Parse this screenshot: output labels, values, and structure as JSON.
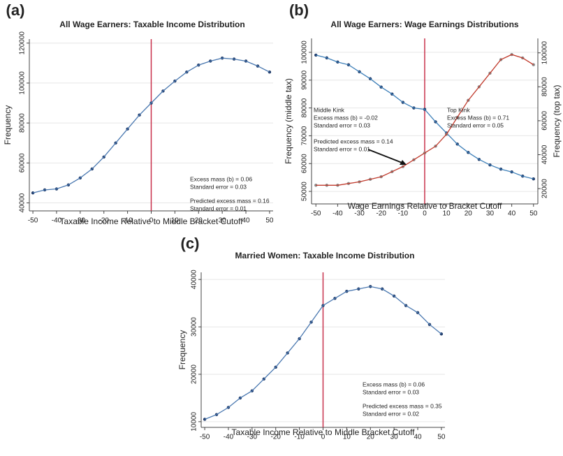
{
  "chart_data": [
    {
      "type": "scatter",
      "panel_label": "(a)",
      "title": "All Wage Earners: Taxable Income Distribution",
      "x_label": "Taxable Income Relative to Middle Bracket Cutoff",
      "y_label": "Frequency",
      "x": [
        -50,
        -45,
        -40,
        -35,
        -30,
        -25,
        -20,
        -15,
        -10,
        -5,
        0,
        5,
        10,
        15,
        20,
        25,
        30,
        35,
        40,
        45,
        50
      ],
      "series": [
        {
          "color": "#1f3a68",
          "line_color": "#4a78b0",
          "values": [
            45000,
            46500,
            47000,
            49000,
            52500,
            57000,
            63000,
            70000,
            77000,
            84000,
            90000,
            96000,
            101000,
            105500,
            109000,
            111000,
            112500,
            112000,
            111000,
            108500,
            105500
          ]
        }
      ],
      "xlim": [
        -51.5,
        51.5
      ],
      "xticks": [
        -50,
        -40,
        -30,
        -20,
        -10,
        0,
        10,
        20,
        30,
        40,
        50
      ],
      "ylim": [
        36000,
        122000
      ],
      "yticks": [
        40000,
        60000,
        80000,
        100000,
        120000
      ],
      "cutoff": 0,
      "cutoff_color": "#c8304a",
      "grid": true,
      "annotations": [
        [
          "Excess mass (b) = 0.06",
          "Standard error = 0.03"
        ],
        [
          "Predicted excess mass = 0.16",
          "Standard error = 0.01"
        ]
      ]
    },
    {
      "type": "scatter",
      "panel_label": "(b)",
      "title": "All Wage Earners: Wage Earnings Distributions",
      "x_label": "Wage Earnings Relative to Bracket Cutoff",
      "y_label": "Frequency (middle tax)",
      "y2_label": "Frequency (top tax)",
      "x": [
        -50,
        -45,
        -40,
        -35,
        -30,
        -25,
        -20,
        -15,
        -10,
        -5,
        0,
        5,
        10,
        15,
        20,
        25,
        30,
        35,
        40,
        45,
        50
      ],
      "series": [
        {
          "color": "#1f3a68",
          "line_color": "#3d7fb8",
          "values": [
            99000,
            98000,
            96500,
            95500,
            93000,
            90500,
            87500,
            85000,
            82000,
            80000,
            79500,
            75000,
            71000,
            67000,
            64000,
            61500,
            59500,
            58000,
            57000,
            55500,
            54500
          ]
        },
        {
          "color": "#8c8c8c",
          "line_color": "#c0392b",
          "axis": "y2",
          "values": [
            22000,
            22000,
            22000,
            23000,
            24000,
            25500,
            27000,
            30000,
            33000,
            37000,
            41000,
            45000,
            52000,
            62000,
            72000,
            80000,
            88000,
            96000,
            99000,
            97000,
            93000
          ]
        }
      ],
      "xlim": [
        -52,
        52
      ],
      "xticks": [
        -50,
        -40,
        -30,
        -20,
        -10,
        0,
        10,
        20,
        30,
        40,
        50
      ],
      "ylim": [
        45500,
        105000
      ],
      "yticks": [
        50000,
        60000,
        70000,
        80000,
        90000,
        100000
      ],
      "y2lim": [
        11000,
        108500
      ],
      "y2ticks": [
        20000,
        40000,
        60000,
        80000,
        100000
      ],
      "cutoff": 0,
      "cutoff_color": "#c8304a",
      "grid": true,
      "annotations": [
        [
          "Middle Kink",
          "Excess mass (b) = -0.02",
          "Standard error = 0.03"
        ],
        [
          "Predicted excess mass = 0.14",
          "Standard error = 0.01"
        ],
        [
          "Top Kink",
          "Excess Mass (b) = 0.71",
          "Standard error = 0.05"
        ]
      ]
    },
    {
      "type": "scatter",
      "panel_label": "(c)",
      "title": "Married Women: Taxable Income Distribution",
      "x_label": "Taxable Income Relative to Middle Bracket Cutoff",
      "y_label": "Frequency",
      "x": [
        -50,
        -45,
        -40,
        -35,
        -30,
        -25,
        -20,
        -15,
        -10,
        -5,
        0,
        5,
        10,
        15,
        20,
        25,
        30,
        35,
        40,
        45,
        50
      ],
      "series": [
        {
          "color": "#1f3a68",
          "line_color": "#4a78b0",
          "values": [
            10500,
            11500,
            13000,
            15000,
            16500,
            19000,
            21500,
            24500,
            27500,
            31000,
            34500,
            36000,
            37500,
            38000,
            38500,
            38000,
            36500,
            34500,
            33000,
            30500,
            28500
          ]
        }
      ],
      "xlim": [
        -51.5,
        51.5
      ],
      "xticks": [
        -50,
        -40,
        -30,
        -20,
        -10,
        0,
        10,
        20,
        30,
        40,
        50
      ],
      "ylim": [
        8800,
        41500
      ],
      "yticks": [
        10000,
        20000,
        30000,
        40000
      ],
      "cutoff": 0,
      "cutoff_color": "#c8304a",
      "grid": true,
      "annotations": [
        [
          "Excess mass (b) = 0.06",
          "Standard error = 0.03"
        ],
        [
          "Predicted excess mass = 0.35",
          "Standard error = 0.02"
        ]
      ]
    }
  ]
}
